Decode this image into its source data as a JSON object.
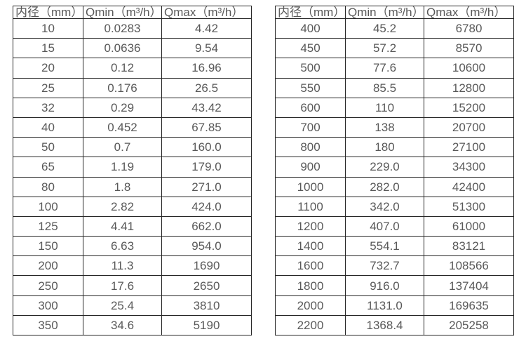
{
  "tables": {
    "headers": [
      "内径（mm）",
      "Qmin（m³/h）",
      "Qmax（m³/h）"
    ],
    "left_rows": [
      [
        "10",
        "0.0283",
        "4.42"
      ],
      [
        "15",
        "0.0636",
        "9.54"
      ],
      [
        "20",
        "0.12",
        "16.96"
      ],
      [
        "25",
        "0.176",
        "26.5"
      ],
      [
        "32",
        "0.29",
        "43.42"
      ],
      [
        "40",
        "0.452",
        "67.85"
      ],
      [
        "50",
        "0.7",
        "160.0"
      ],
      [
        "65",
        "1.19",
        "179.0"
      ],
      [
        "80",
        "1.8",
        "271.0"
      ],
      [
        "100",
        "2.82",
        "424.0"
      ],
      [
        "125",
        "4.41",
        "662.0"
      ],
      [
        "150",
        "6.63",
        "954.0"
      ],
      [
        "200",
        "11.3",
        "1690"
      ],
      [
        "250",
        "17.6",
        "2650"
      ],
      [
        "300",
        "25.4",
        "3810"
      ],
      [
        "350",
        "34.6",
        "5190"
      ]
    ],
    "right_rows": [
      [
        "400",
        "45.2",
        "6780"
      ],
      [
        "450",
        "57.2",
        "8570"
      ],
      [
        "500",
        "77.6",
        "10600"
      ],
      [
        "550",
        "85.5",
        "12800"
      ],
      [
        "600",
        "110",
        "15200"
      ],
      [
        "700",
        "138",
        "20700"
      ],
      [
        "800",
        "180",
        "27100"
      ],
      [
        "900",
        "229.0",
        "34300"
      ],
      [
        "1000",
        "282.0",
        "42400"
      ],
      [
        "1100",
        "342.0",
        "51300"
      ],
      [
        "1200",
        "407.0",
        "61000"
      ],
      [
        "1400",
        "554.1",
        "83121"
      ],
      [
        "1600",
        "732.7",
        "108566"
      ],
      [
        "1800",
        "916.0",
        "137404"
      ],
      [
        "2000",
        "1131.0",
        "169635"
      ],
      [
        "2200",
        "1368.4",
        "205258"
      ]
    ]
  },
  "colors": {
    "border": "#262626",
    "text": "#595959",
    "background": "#ffffff"
  }
}
